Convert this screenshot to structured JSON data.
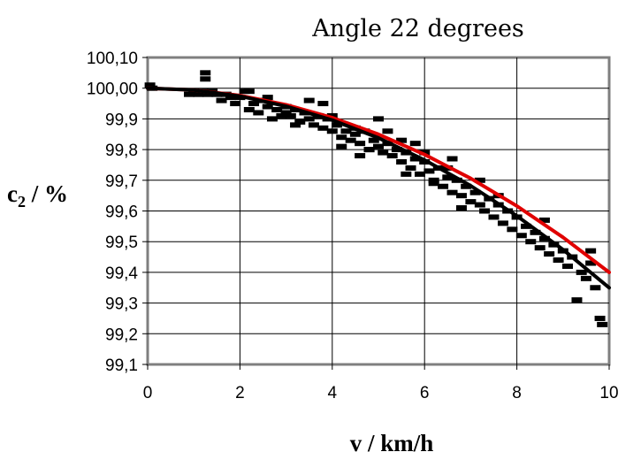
{
  "chart_data": {
    "type": "scatter",
    "title": "Angle 22 degrees",
    "xlabel": "v / km/h",
    "ylabel": "c2 / %",
    "ylabel_main": "c",
    "ylabel_sub": "2",
    "ylabel_rest": " / %",
    "xlim": [
      0,
      10
    ],
    "ylim": [
      99.1,
      100.1
    ],
    "x_ticks": [
      0,
      2,
      4,
      6,
      8,
      10
    ],
    "x_tick_labels": [
      "0",
      "2",
      "4",
      "6",
      "8",
      "10"
    ],
    "y_ticks": [
      99.1,
      99.2,
      99.3,
      99.4,
      99.5,
      99.6,
      99.7,
      99.8,
      99.9,
      100.0,
      100.1
    ],
    "y_tick_labels": [
      "99,1",
      "99,2",
      "99,3",
      "99,4",
      "99,5",
      "99,6",
      "99,7",
      "99,8",
      "99,9",
      "100,00",
      "100,10"
    ],
    "grid": "vertical and horizontal",
    "legend": "none",
    "series": [
      {
        "kind": "points",
        "color": "#000000",
        "x": [
          0.05,
          0.1,
          0.9,
          1.0,
          1.1,
          1.2,
          1.25,
          1.3,
          1.4,
          1.5,
          1.6,
          1.7,
          1.8,
          1.9,
          2.0,
          2.1,
          2.2,
          2.3,
          2.4,
          2.5,
          2.6,
          2.7,
          2.8,
          2.9,
          3.0,
          3.1,
          3.2,
          3.3,
          3.4,
          3.5,
          3.6,
          3.7,
          3.8,
          3.9,
          4.0,
          4.1,
          4.2,
          4.3,
          4.4,
          4.5,
          4.6,
          4.7,
          4.8,
          4.9,
          5.0,
          5.1,
          5.2,
          5.3,
          5.4,
          5.5,
          5.6,
          5.7,
          5.8,
          5.9,
          6.0,
          6.1,
          6.2,
          6.3,
          6.4,
          6.5,
          6.6,
          6.7,
          6.8,
          6.9,
          7.0,
          7.1,
          7.2,
          7.3,
          7.4,
          7.5,
          7.6,
          7.7,
          7.8,
          7.9,
          8.0,
          8.1,
          8.2,
          8.3,
          8.4,
          8.5,
          8.6,
          8.7,
          8.8,
          8.9,
          9.0,
          9.1,
          9.2,
          9.3,
          9.4,
          9.5,
          9.6,
          9.7,
          9.8,
          9.85,
          3.5,
          4.5,
          5.0,
          5.5,
          6.0,
          6.5,
          4.2,
          5.2,
          6.2,
          7.2,
          3.8,
          4.8,
          5.8,
          6.8,
          2.6,
          3.2,
          4.6,
          5.6,
          6.6,
          7.6,
          8.6,
          9.6,
          1.25,
          2.2,
          3.0,
          4.0
        ],
        "y": [
          100.01,
          100.0,
          99.98,
          99.99,
          99.98,
          99.99,
          100.05,
          99.98,
          99.99,
          99.98,
          99.96,
          99.98,
          99.97,
          99.95,
          99.97,
          99.99,
          99.93,
          99.95,
          99.92,
          99.96,
          99.94,
          99.9,
          99.93,
          99.91,
          99.92,
          99.91,
          99.93,
          99.89,
          99.92,
          99.9,
          99.88,
          99.91,
          99.87,
          99.9,
          99.86,
          99.88,
          99.84,
          99.86,
          99.83,
          99.85,
          99.82,
          99.86,
          99.8,
          99.83,
          99.81,
          99.79,
          99.82,
          99.78,
          99.8,
          99.76,
          99.79,
          99.74,
          99.77,
          99.72,
          99.76,
          99.73,
          99.7,
          99.74,
          99.68,
          99.71,
          99.66,
          99.7,
          99.65,
          99.68,
          99.63,
          99.66,
          99.62,
          99.6,
          99.64,
          99.58,
          99.62,
          99.56,
          99.6,
          99.54,
          99.58,
          99.52,
          99.55,
          99.5,
          99.53,
          99.48,
          99.51,
          99.46,
          99.49,
          99.44,
          99.47,
          99.42,
          99.45,
          99.31,
          99.4,
          99.38,
          99.43,
          99.35,
          99.25,
          99.23,
          99.96,
          99.87,
          99.9,
          99.83,
          99.79,
          99.74,
          99.81,
          99.86,
          99.69,
          99.7,
          99.95,
          99.8,
          99.82,
          99.61,
          99.97,
          99.88,
          99.78,
          99.72,
          99.77,
          99.65,
          99.57,
          99.47,
          100.03,
          99.99,
          99.94,
          99.91
        ]
      },
      {
        "kind": "fit",
        "color": "#e00000",
        "x": [
          0,
          1,
          2,
          3,
          4,
          5,
          6,
          7,
          8,
          9,
          10
        ],
        "y": [
          100.0,
          99.994,
          99.976,
          99.946,
          99.904,
          99.85,
          99.784,
          99.706,
          99.616,
          99.514,
          99.4
        ]
      },
      {
        "kind": "fit",
        "color": "#000000",
        "x": [
          0,
          1,
          2,
          3,
          4,
          5,
          6,
          7,
          8,
          9,
          10
        ],
        "y": [
          100.0,
          99.994,
          99.974,
          99.941,
          99.896,
          99.838,
          99.766,
          99.682,
          99.584,
          99.474,
          99.35
        ]
      }
    ]
  }
}
